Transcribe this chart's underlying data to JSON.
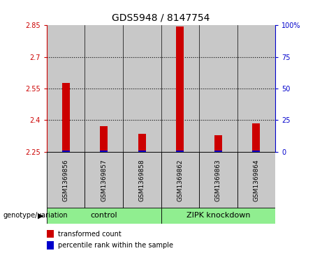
{
  "title": "GDS5948 / 8147754",
  "samples": [
    "GSM1369856",
    "GSM1369857",
    "GSM1369858",
    "GSM1369862",
    "GSM1369863",
    "GSM1369864"
  ],
  "red_values": [
    2.575,
    2.37,
    2.335,
    2.845,
    2.33,
    2.385
  ],
  "blue_bar_height": 0.007,
  "ylim_left": [
    2.25,
    2.85
  ],
  "yticks_left": [
    2.25,
    2.4,
    2.55,
    2.7,
    2.85
  ],
  "yticks_right": [
    0,
    25,
    50,
    75,
    100
  ],
  "ytick_labels_left": [
    "2.25",
    "2.4",
    "2.55",
    "2.7",
    "2.85"
  ],
  "ytick_labels_right": [
    "0",
    "25",
    "50",
    "75",
    "100%"
  ],
  "grid_values": [
    2.4,
    2.55,
    2.7
  ],
  "groups": [
    {
      "label": "control",
      "start": 0,
      "end": 3,
      "color": "#90EE90"
    },
    {
      "label": "ZIPK knockdown",
      "start": 3,
      "end": 6,
      "color": "#90EE90"
    }
  ],
  "red_bar_width": 0.2,
  "red_color": "#CC0000",
  "blue_color": "#0000CC",
  "bg_color": "#C8C8C8",
  "legend_red": "transformed count",
  "legend_blue": "percentile rank within the sample",
  "xlabel_label": "genotype/variation",
  "left_axis_color": "#CC0000",
  "right_axis_color": "#0000CC"
}
